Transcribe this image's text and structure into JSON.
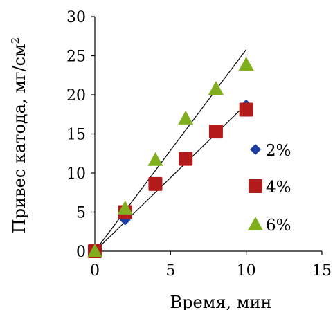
{
  "chart_data": {
    "type": "scatter",
    "xlabel": "Время, мин",
    "ylabel": "Привес катода, мг/см",
    "ylabel_superscript": "2",
    "xlim": [
      0,
      15
    ],
    "ylim": [
      0,
      30
    ],
    "xticks": [
      0,
      5,
      10,
      15
    ],
    "yticks": [
      0,
      5,
      10,
      15,
      20,
      25,
      30
    ],
    "grid": false,
    "legend_position": "right",
    "series": [
      {
        "name": "2%",
        "marker": "diamond",
        "color": "#1f3f9f",
        "x": [
          0,
          2,
          4,
          6,
          8,
          10
        ],
        "y": [
          0,
          4,
          8.5,
          12,
          15.5,
          18.7
        ]
      },
      {
        "name": "4%",
        "marker": "square",
        "color": "#b31b1b",
        "x": [
          0,
          2,
          4,
          6,
          8,
          10
        ],
        "y": [
          0,
          5,
          8.6,
          11.8,
          15.3,
          18.1
        ]
      },
      {
        "name": "6%",
        "marker": "triangle",
        "color": "#7faf1f",
        "x": [
          0,
          2,
          4,
          6,
          8,
          10
        ],
        "y": [
          0,
          5.5,
          11.7,
          17,
          20.8,
          23.9
        ]
      }
    ],
    "trendlines": [
      {
        "x": [
          0,
          10
        ],
        "y": [
          0,
          18.8
        ]
      },
      {
        "x": [
          0,
          10
        ],
        "y": [
          0,
          25.8
        ]
      }
    ]
  }
}
